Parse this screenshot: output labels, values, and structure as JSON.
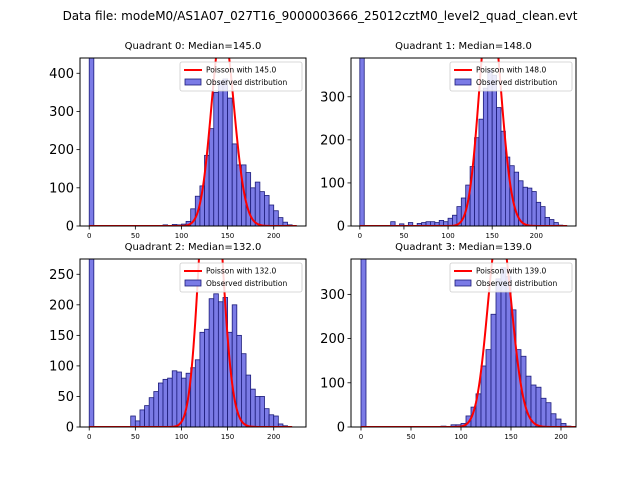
{
  "suptitle": "Data file: modeM0/AS1A07_027T16_9000003666_25012cztM0_level2_quad_clean.evt",
  "colors": {
    "bar_fill": "#7b7be6",
    "bar_edge": "#1c1c7a",
    "poisson": "#ff0000",
    "axis": "#000000"
  },
  "chart_data": [
    {
      "type": "bar",
      "title": "Quadrant 0: Median=145.0",
      "median": 145.0,
      "xlim": [
        -10,
        235
      ],
      "ylim": [
        0,
        440
      ],
      "xticks": [
        0,
        50,
        100,
        150,
        200
      ],
      "yticks": [
        0,
        100,
        200,
        300,
        400
      ],
      "bin_width": 5,
      "legend": {
        "line_label": "Poisson with 145.0",
        "bar_label": "Observed distribution"
      },
      "bins": [
        [
          0,
          1000
        ],
        [
          80,
          3
        ],
        [
          90,
          4
        ],
        [
          95,
          3
        ],
        [
          100,
          5
        ],
        [
          105,
          12
        ],
        [
          110,
          45
        ],
        [
          115,
          78
        ],
        [
          120,
          105
        ],
        [
          125,
          185
        ],
        [
          130,
          255
        ],
        [
          135,
          350
        ],
        [
          140,
          380
        ],
        [
          145,
          385
        ],
        [
          150,
          335
        ],
        [
          155,
          215
        ],
        [
          160,
          160
        ],
        [
          165,
          160
        ],
        [
          170,
          140
        ],
        [
          175,
          100
        ],
        [
          180,
          115
        ],
        [
          185,
          90
        ],
        [
          190,
          80
        ],
        [
          195,
          55
        ],
        [
          200,
          40
        ],
        [
          205,
          22
        ],
        [
          210,
          10
        ],
        [
          215,
          3
        ]
      ]
    },
    {
      "type": "bar",
      "title": "Quadrant 1: Median=148.0",
      "median": 148.0,
      "xlim": [
        -10,
        245
      ],
      "ylim": [
        0,
        390
      ],
      "xticks": [
        0,
        50,
        100,
        150,
        200
      ],
      "yticks": [
        0,
        100,
        200,
        300
      ],
      "bin_width": 5,
      "legend": {
        "line_label": "Poisson with 148.0",
        "bar_label": "Observed distribution"
      },
      "bins": [
        [
          0,
          1000
        ],
        [
          35,
          10
        ],
        [
          45,
          5
        ],
        [
          55,
          8
        ],
        [
          65,
          6
        ],
        [
          70,
          8
        ],
        [
          75,
          10
        ],
        [
          80,
          10
        ],
        [
          85,
          8
        ],
        [
          90,
          13
        ],
        [
          95,
          10
        ],
        [
          100,
          18
        ],
        [
          105,
          25
        ],
        [
          110,
          45
        ],
        [
          115,
          65
        ],
        [
          120,
          95
        ],
        [
          125,
          138
        ],
        [
          130,
          205
        ],
        [
          135,
          248
        ],
        [
          140,
          320
        ],
        [
          145,
          362
        ],
        [
          150,
          350
        ],
        [
          155,
          275
        ],
        [
          160,
          220
        ],
        [
          165,
          160
        ],
        [
          170,
          140
        ],
        [
          175,
          125
        ],
        [
          180,
          105
        ],
        [
          185,
          90
        ],
        [
          190,
          88
        ],
        [
          195,
          80
        ],
        [
          200,
          55
        ],
        [
          205,
          45
        ],
        [
          210,
          20
        ],
        [
          215,
          15
        ],
        [
          220,
          8
        ],
        [
          225,
          2
        ]
      ]
    },
    {
      "type": "bar",
      "title": "Quadrant 2: Median=132.0",
      "median": 132.0,
      "xlim": [
        -10,
        235
      ],
      "ylim": [
        0,
        275
      ],
      "xticks": [
        0,
        50,
        100,
        150,
        200
      ],
      "yticks": [
        0,
        50,
        100,
        150,
        200,
        250
      ],
      "bin_width": 5,
      "legend": {
        "line_label": "Poisson with 132.0",
        "bar_label": "Observed distribution"
      },
      "bins": [
        [
          0,
          1000
        ],
        [
          45,
          18
        ],
        [
          50,
          10
        ],
        [
          55,
          28
        ],
        [
          60,
          35
        ],
        [
          65,
          48
        ],
        [
          70,
          58
        ],
        [
          75,
          72
        ],
        [
          80,
          78
        ],
        [
          85,
          80
        ],
        [
          90,
          92
        ],
        [
          95,
          90
        ],
        [
          100,
          80
        ],
        [
          105,
          88
        ],
        [
          110,
          97
        ],
        [
          115,
          110
        ],
        [
          120,
          155
        ],
        [
          125,
          160
        ],
        [
          130,
          210
        ],
        [
          135,
          218
        ],
        [
          140,
          205
        ],
        [
          145,
          212
        ],
        [
          150,
          155
        ],
        [
          155,
          200
        ],
        [
          160,
          150
        ],
        [
          165,
          120
        ],
        [
          170,
          85
        ],
        [
          175,
          62
        ],
        [
          180,
          50
        ],
        [
          185,
          50
        ],
        [
          190,
          30
        ],
        [
          195,
          20
        ],
        [
          200,
          18
        ],
        [
          205,
          5
        ],
        [
          210,
          2
        ]
      ]
    },
    {
      "type": "bar",
      "title": "Quadrant 3: Median=139.0",
      "median": 139.0,
      "xlim": [
        -10,
        215
      ],
      "ylim": [
        0,
        380
      ],
      "xticks": [
        0,
        50,
        100,
        150,
        200
      ],
      "yticks": [
        0,
        100,
        200,
        300
      ],
      "bin_width": 5,
      "legend": {
        "line_label": "Poisson with 139.0",
        "bar_label": "Observed distribution"
      },
      "bins": [
        [
          0,
          1000
        ],
        [
          80,
          2
        ],
        [
          90,
          5
        ],
        [
          95,
          5
        ],
        [
          100,
          8
        ],
        [
          105,
          25
        ],
        [
          110,
          45
        ],
        [
          115,
          75
        ],
        [
          120,
          138
        ],
        [
          125,
          175
        ],
        [
          130,
          255
        ],
        [
          135,
          335
        ],
        [
          140,
          360
        ],
        [
          145,
          340
        ],
        [
          150,
          265
        ],
        [
          155,
          175
        ],
        [
          160,
          160
        ],
        [
          165,
          115
        ],
        [
          170,
          95
        ],
        [
          175,
          90
        ],
        [
          180,
          65
        ],
        [
          185,
          55
        ],
        [
          190,
          30
        ],
        [
          195,
          18
        ],
        [
          200,
          8
        ],
        [
          205,
          2
        ]
      ]
    }
  ]
}
